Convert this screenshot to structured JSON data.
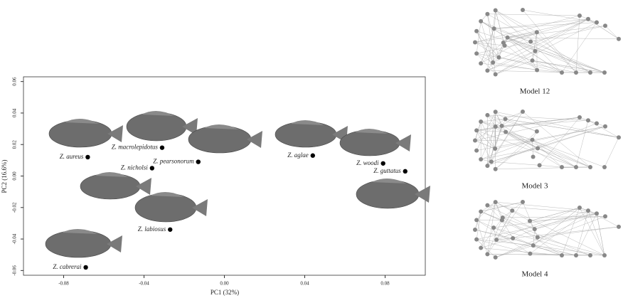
{
  "chart_data": {
    "type": "scatter",
    "x_label": "PC1 (32%)",
    "y_label": "PC2 (16.6%)",
    "x": [
      -0.068,
      -0.031,
      -0.013,
      0.044,
      0.079,
      0.09,
      -0.036,
      -0.027,
      -0.069
    ],
    "values": [
      0.012,
      0.018,
      0.009,
      0.013,
      0.008,
      0.003,
      0.005,
      -0.034,
      -0.058
    ],
    "point_labels": [
      "Z. aureus",
      "Z. macrolepidotus",
      "Z. pearsonorum",
      "Z. aglae",
      "Z. woodi",
      "Z. guttatus",
      "Z. nicholsi",
      "Z. labiosus",
      "Z. cabrerai"
    ],
    "color": "#000000",
    "xlim": [
      -0.1,
      0.1
    ],
    "ylim": [
      -0.063,
      0.063
    ],
    "xticks": [
      -0.08,
      -0.04,
      {
        "value": 0,
        "label": "0.00"
      },
      0.04,
      0.08
    ],
    "yticks": [
      0.06,
      0.04,
      0.02,
      {
        "value": 0,
        "label": "0.00"
      },
      -0.02,
      -0.04,
      -0.06
    ]
  },
  "networks": [
    {
      "caption": "Model 12"
    },
    {
      "caption": "Model 3"
    },
    {
      "caption": "Model 4"
    }
  ]
}
